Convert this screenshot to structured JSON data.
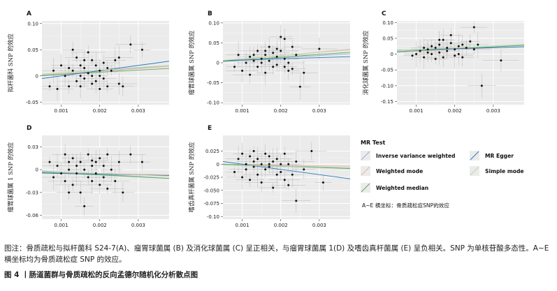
{
  "legend": {
    "title": "MR Test",
    "items": [
      {
        "label": "Inverse variance weighted",
        "color": "#9ab0d4"
      },
      {
        "label": "Weighted mode",
        "color": "#f0b4a8"
      },
      {
        "label": "Weighted median",
        "color": "#5bab5b"
      },
      {
        "label": "MR Egger",
        "color": "#2c7bc0"
      },
      {
        "label": "Simple mode",
        "color": "#b8d8a8"
      }
    ],
    "note": "A~E 横坐标：骨质疏松症SNP的效应"
  },
  "caption": "图注：骨质疏松与拟杆菌科 S24-7(A)、瘤胃球菌属 (B) 及消化球菌属 (C) 呈正相关，与瘤胃球菌属 1(D) 及嗜齿真杆菌属 (E) 呈负相关。SNP 为单核苷酸多态性。A~E 横坐标均为骨质疏松症 SNP 的效应。",
  "figure_title": "图 4 丨肠道菌群与骨质疏松的反向孟德尔随机化分析散点图",
  "chart_data": [
    {
      "type": "scatter",
      "label": "A",
      "ylabel": "拟杆菌科 SNP 的效应",
      "xlim": [
        0.0005,
        0.0038
      ],
      "ylim": [
        -0.055,
        0.105
      ],
      "xticks": [
        "0.001",
        "0.002",
        "0.003"
      ],
      "xtick_values": [
        0.001,
        0.002,
        0.003
      ],
      "yticks": [
        "-0.05",
        "0",
        "0.05",
        "0.10"
      ],
      "ytick_values": [
        -0.05,
        0,
        0.05,
        0.1
      ],
      "points": [
        [
          0.0007,
          -0.02
        ],
        [
          0.0008,
          0.01
        ],
        [
          0.0009,
          -0.025
        ],
        [
          0.001,
          0.02
        ],
        [
          0.0011,
          0.0
        ],
        [
          0.0012,
          0.015
        ],
        [
          0.0013,
          0.05
        ],
        [
          0.0013,
          0.01
        ],
        [
          0.0014,
          -0.01
        ],
        [
          0.0014,
          0.035
        ],
        [
          0.0015,
          0.0
        ],
        [
          0.0015,
          -0.02
        ],
        [
          0.0016,
          0.03
        ],
        [
          0.0016,
          0.015
        ],
        [
          0.0016,
          -0.005
        ],
        [
          0.0017,
          0.005
        ],
        [
          0.0017,
          0.045
        ],
        [
          0.0018,
          -0.015
        ],
        [
          0.0018,
          0.0
        ],
        [
          0.0019,
          0.02
        ],
        [
          0.0019,
          -0.01
        ],
        [
          0.002,
          0.01
        ],
        [
          0.002,
          0.0
        ],
        [
          0.0021,
          -0.005
        ],
        [
          0.0021,
          0.025
        ],
        [
          0.0022,
          0.015
        ],
        [
          0.0022,
          -0.02
        ],
        [
          0.0023,
          0.01
        ],
        [
          0.0024,
          0.03
        ],
        [
          0.0025,
          0.035
        ],
        [
          0.0025,
          -0.015
        ],
        [
          0.0026,
          -0.02
        ],
        [
          0.0028,
          0.06
        ],
        [
          0.0031,
          0.05
        ],
        [
          0.0012,
          -0.02
        ],
        [
          0.0015,
          0.02
        ],
        [
          0.0018,
          0.03
        ],
        [
          0.002,
          -0.025
        ]
      ],
      "lines": [
        {
          "method": "Inverse variance weighted",
          "slope": 6.0,
          "intercept": -0.003
        },
        {
          "method": "Weighted mode",
          "slope": 5.0,
          "intercept": -0.001
        },
        {
          "method": "Weighted median",
          "slope": 4.0,
          "intercept": -0.001
        },
        {
          "method": "MR Egger",
          "slope": 10.0,
          "intercept": -0.01
        },
        {
          "method": "Simple mode",
          "slope": 5.0,
          "intercept": 0.001
        }
      ]
    },
    {
      "type": "scatter",
      "label": "B",
      "ylabel": "瘤胃球菌属 SNP 的效应",
      "xlim": [
        0.0005,
        0.0038
      ],
      "ylim": [
        -0.105,
        0.105
      ],
      "xticks": [
        "0.001",
        "0.002",
        "0.003"
      ],
      "xtick_values": [
        0.001,
        0.002,
        0.003
      ],
      "yticks": [
        "-0.10",
        "-0.05",
        "0",
        "0.05",
        "0.10"
      ],
      "ytick_values": [
        -0.1,
        -0.05,
        0,
        0.05,
        0.1
      ],
      "points": [
        [
          0.0008,
          -0.01
        ],
        [
          0.0009,
          0.02
        ],
        [
          0.001,
          -0.02
        ],
        [
          0.0011,
          0.0
        ],
        [
          0.0012,
          0.015
        ],
        [
          0.0012,
          -0.03
        ],
        [
          0.0013,
          0.02
        ],
        [
          0.0014,
          -0.01
        ],
        [
          0.0014,
          0.03
        ],
        [
          0.0015,
          0.0
        ],
        [
          0.0015,
          0.01
        ],
        [
          0.0016,
          -0.025
        ],
        [
          0.0016,
          0.02
        ],
        [
          0.0017,
          0.005
        ],
        [
          0.0017,
          0.04
        ],
        [
          0.0018,
          -0.01
        ],
        [
          0.0018,
          0.025
        ],
        [
          0.0019,
          0.015
        ],
        [
          0.0019,
          -0.005
        ],
        [
          0.002,
          0.03
        ],
        [
          0.002,
          0.065
        ],
        [
          0.0021,
          0.01
        ],
        [
          0.0021,
          0.06
        ],
        [
          0.0022,
          -0.02
        ],
        [
          0.0022,
          0.0
        ],
        [
          0.0023,
          0.04
        ],
        [
          0.0023,
          -0.015
        ],
        [
          0.0024,
          0.02
        ],
        [
          0.0025,
          -0.06
        ],
        [
          0.0026,
          -0.025
        ],
        [
          0.003,
          0.035
        ],
        [
          0.0013,
          0.005
        ],
        [
          0.0016,
          0.03
        ],
        [
          0.0019,
          0.035
        ],
        [
          0.0021,
          -0.01
        ]
      ],
      "lines": [
        {
          "method": "Inverse variance weighted",
          "slope": 6.0,
          "intercept": 0.0
        },
        {
          "method": "Weighted mode",
          "slope": 9.0,
          "intercept": 0.0
        },
        {
          "method": "Weighted median",
          "slope": 7.0,
          "intercept": 0.0
        },
        {
          "method": "MR Egger",
          "slope": 3.0,
          "intercept": 0.004
        },
        {
          "method": "Simple mode",
          "slope": 8.0,
          "intercept": 0.002
        }
      ]
    },
    {
      "type": "scatter",
      "label": "C",
      "ylabel": "消化球菌属 SNP 的效应",
      "xlim": [
        0.0005,
        0.0038
      ],
      "ylim": [
        -0.16,
        0.105
      ],
      "xticks": [
        "0.001",
        "0.002",
        "0.003"
      ],
      "xtick_values": [
        0.001,
        0.002,
        0.003
      ],
      "yticks": [
        "-0.15",
        "-0.10",
        "-0.05",
        "0",
        "0.05",
        "0.10"
      ],
      "ytick_values": [
        -0.15,
        -0.1,
        -0.05,
        0,
        0.05,
        0.1
      ],
      "points": [
        [
          0.0009,
          -0.005
        ],
        [
          0.001,
          0.0
        ],
        [
          0.0011,
          0.01
        ],
        [
          0.0012,
          -0.01
        ],
        [
          0.0012,
          0.02
        ],
        [
          0.0013,
          0.015
        ],
        [
          0.0014,
          0.0
        ],
        [
          0.0014,
          0.025
        ],
        [
          0.0015,
          0.02
        ],
        [
          0.0015,
          -0.015
        ],
        [
          0.0016,
          0.03
        ],
        [
          0.0016,
          0.005
        ],
        [
          0.0017,
          0.045
        ],
        [
          0.0017,
          -0.01
        ],
        [
          0.0018,
          0.02
        ],
        [
          0.0018,
          0.01
        ],
        [
          0.0019,
          0.035
        ],
        [
          0.0019,
          0.06
        ],
        [
          0.002,
          0.015
        ],
        [
          0.002,
          -0.005
        ],
        [
          0.0021,
          0.025
        ],
        [
          0.0021,
          0.0
        ],
        [
          0.0022,
          0.03
        ],
        [
          0.0022,
          -0.01
        ],
        [
          0.0023,
          0.02
        ],
        [
          0.0024,
          0.04
        ],
        [
          0.0025,
          0.085
        ],
        [
          0.0025,
          0.015
        ],
        [
          0.0026,
          0.03
        ],
        [
          0.0027,
          -0.1
        ],
        [
          0.0032,
          -0.02
        ],
        [
          0.0013,
          0.005
        ],
        [
          0.0016,
          0.045
        ]
      ],
      "lines": [
        {
          "method": "Inverse variance weighted",
          "slope": 7.0,
          "intercept": 0.002
        },
        {
          "method": "Weighted mode",
          "slope": 5.0,
          "intercept": 0.005
        },
        {
          "method": "Weighted median",
          "slope": 6.0,
          "intercept": 0.005
        },
        {
          "method": "MR Egger",
          "slope": 3.5,
          "intercept": 0.01
        },
        {
          "method": "Simple mode",
          "slope": 6.0,
          "intercept": 0.008
        }
      ]
    },
    {
      "type": "scatter",
      "label": "D",
      "ylabel": "瘤胃球菌属 1 SNP 的效应",
      "xlim": [
        0.0005,
        0.0038
      ],
      "ylim": [
        -0.065,
        0.045
      ],
      "xticks": [
        "0.001",
        "0.002",
        "0.003"
      ],
      "xtick_values": [
        0.001,
        0.002,
        0.003
      ],
      "yticks": [
        "-0.06",
        "-0.03",
        "0",
        "0.03"
      ],
      "ytick_values": [
        -0.06,
        -0.03,
        0,
        0.03
      ],
      "points": [
        [
          0.0007,
          0.01
        ],
        [
          0.0008,
          -0.01
        ],
        [
          0.0009,
          0.005
        ],
        [
          0.001,
          -0.005
        ],
        [
          0.0011,
          0.02
        ],
        [
          0.0011,
          -0.015
        ],
        [
          0.0012,
          0.0
        ],
        [
          0.0012,
          0.01
        ],
        [
          0.0013,
          -0.02
        ],
        [
          0.0013,
          0.015
        ],
        [
          0.0014,
          -0.005
        ],
        [
          0.0014,
          0.005
        ],
        [
          0.0015,
          -0.03
        ],
        [
          0.0015,
          0.01
        ],
        [
          0.0016,
          -0.048
        ],
        [
          0.0016,
          0.0
        ],
        [
          0.0017,
          -0.01
        ],
        [
          0.0017,
          0.02
        ],
        [
          0.0018,
          0.005
        ],
        [
          0.0018,
          -0.015
        ],
        [
          0.0019,
          0.01
        ],
        [
          0.0019,
          -0.005
        ],
        [
          0.002,
          0.015
        ],
        [
          0.002,
          -0.02
        ],
        [
          0.0021,
          0.005
        ],
        [
          0.0021,
          -0.01
        ],
        [
          0.0022,
          0.02
        ],
        [
          0.0022,
          -0.025
        ],
        [
          0.0023,
          0.0
        ],
        [
          0.0024,
          -0.015
        ],
        [
          0.0025,
          0.01
        ],
        [
          0.0026,
          -0.03
        ],
        [
          0.0028,
          0.02
        ],
        [
          0.0031,
          0.01
        ],
        [
          0.0012,
          -0.03
        ],
        [
          0.0018,
          0.012
        ]
      ],
      "lines": [
        {
          "method": "Inverse variance weighted",
          "slope": -3.0,
          "intercept": 0.0
        },
        {
          "method": "Weighted mode",
          "slope": -1.0,
          "intercept": -0.003
        },
        {
          "method": "Weighted median",
          "slope": -2.5,
          "intercept": -0.002
        },
        {
          "method": "MR Egger",
          "slope": -1.0,
          "intercept": -0.004
        },
        {
          "method": "Simple mode",
          "slope": -2.0,
          "intercept": -0.001
        }
      ]
    },
    {
      "type": "scatter",
      "label": "E",
      "ylabel": "嗜齿真杆菌属 SNP 的效应",
      "xlim": [
        0.0005,
        0.0038
      ],
      "ylim": [
        -0.105,
        0.055
      ],
      "xticks": [
        "0.001",
        "0.002",
        "0.003"
      ],
      "xtick_values": [
        0.001,
        0.002,
        0.003
      ],
      "yticks": [
        "-0.10",
        "-0.075",
        "-0.050",
        "-0.025",
        "0",
        "0.025"
      ],
      "ytick_values": [
        -0.1,
        -0.075,
        -0.05,
        -0.025,
        0,
        0.025
      ],
      "points": [
        [
          0.0008,
          -0.015
        ],
        [
          0.0009,
          0.01
        ],
        [
          0.001,
          -0.025
        ],
        [
          0.001,
          0.02
        ],
        [
          0.0011,
          0.0
        ],
        [
          0.0011,
          -0.01
        ],
        [
          0.0012,
          0.015
        ],
        [
          0.0012,
          -0.03
        ],
        [
          0.0013,
          0.005
        ],
        [
          0.0013,
          0.025
        ],
        [
          0.0014,
          -0.02
        ],
        [
          0.0014,
          0.01
        ],
        [
          0.0015,
          0.0
        ],
        [
          0.0015,
          -0.035
        ],
        [
          0.0016,
          0.02
        ],
        [
          0.0016,
          -0.01
        ],
        [
          0.0017,
          -0.005
        ],
        [
          0.0017,
          0.015
        ],
        [
          0.0018,
          -0.045
        ],
        [
          0.0018,
          0.005
        ],
        [
          0.0019,
          -0.02
        ],
        [
          0.0019,
          0.01
        ],
        [
          0.002,
          0.0
        ],
        [
          0.002,
          -0.015
        ],
        [
          0.0021,
          -0.03
        ],
        [
          0.0021,
          0.02
        ],
        [
          0.0022,
          0.0
        ],
        [
          0.0022,
          -0.04
        ],
        [
          0.0023,
          -0.02
        ],
        [
          0.0024,
          -0.07
        ],
        [
          0.0024,
          0.005
        ],
        [
          0.0026,
          -0.01
        ],
        [
          0.0028,
          0.025
        ],
        [
          0.0031,
          -0.035
        ],
        [
          0.0013,
          -0.005
        ],
        [
          0.0017,
          0.0
        ]
      ],
      "lines": [
        {
          "method": "Inverse variance weighted",
          "slope": -2.0,
          "intercept": 0.001
        },
        {
          "method": "Weighted mode",
          "slope": -1.0,
          "intercept": 0.0
        },
        {
          "method": "Weighted median",
          "slope": -2.5,
          "intercept": 0.001
        },
        {
          "method": "MR Egger",
          "slope": -10.0,
          "intercept": 0.01
        },
        {
          "method": "Simple mode",
          "slope": -1.5,
          "intercept": -0.001
        }
      ]
    }
  ]
}
